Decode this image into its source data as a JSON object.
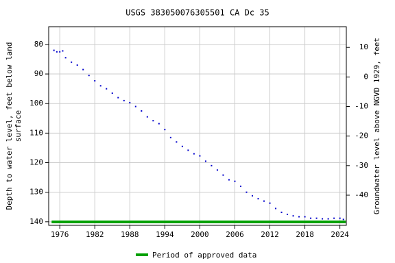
{
  "chart_data": {
    "type": "scatter",
    "title": "USGS 383050076305501 CA Dc  35",
    "ylabel_lines": [
      "Depth to water level, feet below land",
      "surface"
    ],
    "y2label": "Groundwater level above NGVD 1929, feet",
    "xlim": [
      1974.1,
      2025.1
    ],
    "xticks": [
      1976,
      1982,
      1988,
      1994,
      2000,
      2006,
      2012,
      2018,
      2024
    ],
    "ylim": [
      74,
      141.2
    ],
    "yticks": [
      80,
      90,
      100,
      110,
      120,
      130,
      140
    ],
    "y2lim": [
      17,
      -50.2
    ],
    "y2ticks": [
      10,
      0,
      -10,
      -20,
      -30,
      -40
    ],
    "inverted_y": true,
    "grid": true,
    "series": [
      {
        "name": "Depth to water level",
        "color": "#0000cc",
        "x": [
          1975.0,
          1975.5,
          1976.0,
          1976.5,
          1977.0,
          1978.0,
          1979.0,
          1980.0,
          1981.0,
          1982.0,
          1983.0,
          1984.0,
          1985.0,
          1986.0,
          1987.0,
          1988.0,
          1989.0,
          1990.0,
          1991.0,
          1992.0,
          1993.0,
          1994.0,
          1995.0,
          1996.0,
          1997.0,
          1998.0,
          1999.0,
          2000.0,
          2001.0,
          2002.0,
          2003.0,
          2004.0,
          2005.0,
          2006.0,
          2007.0,
          2008.0,
          2009.0,
          2010.0,
          2011.0,
          2012.0,
          2013.0,
          2014.0,
          2015.0,
          2016.0,
          2017.0,
          2018.0,
          2019.0,
          2020.0,
          2021.0,
          2022.0,
          2023.0,
          2024.0,
          2024.6
        ],
        "values": [
          82,
          82.5,
          82.5,
          82.2,
          84.5,
          86,
          87,
          88.5,
          90.5,
          92.3,
          94,
          95,
          96.5,
          98,
          99,
          99.7,
          101,
          102.5,
          104.5,
          105.8,
          106.8,
          108.8,
          111.5,
          113,
          114.5,
          115.8,
          117,
          117.7,
          119.5,
          121,
          122.5,
          124.2,
          125.8,
          126.3,
          128,
          130,
          131.2,
          132.2,
          133,
          133.7,
          135.5,
          136.8,
          137.5,
          138,
          138.3,
          138.3,
          138.8,
          138.8,
          139,
          139,
          138.8,
          138.8,
          139.2
        ]
      }
    ],
    "approved": {
      "name": "Period of approved data",
      "color": "#00a000",
      "start": 1974.6,
      "end": 2025
    }
  }
}
